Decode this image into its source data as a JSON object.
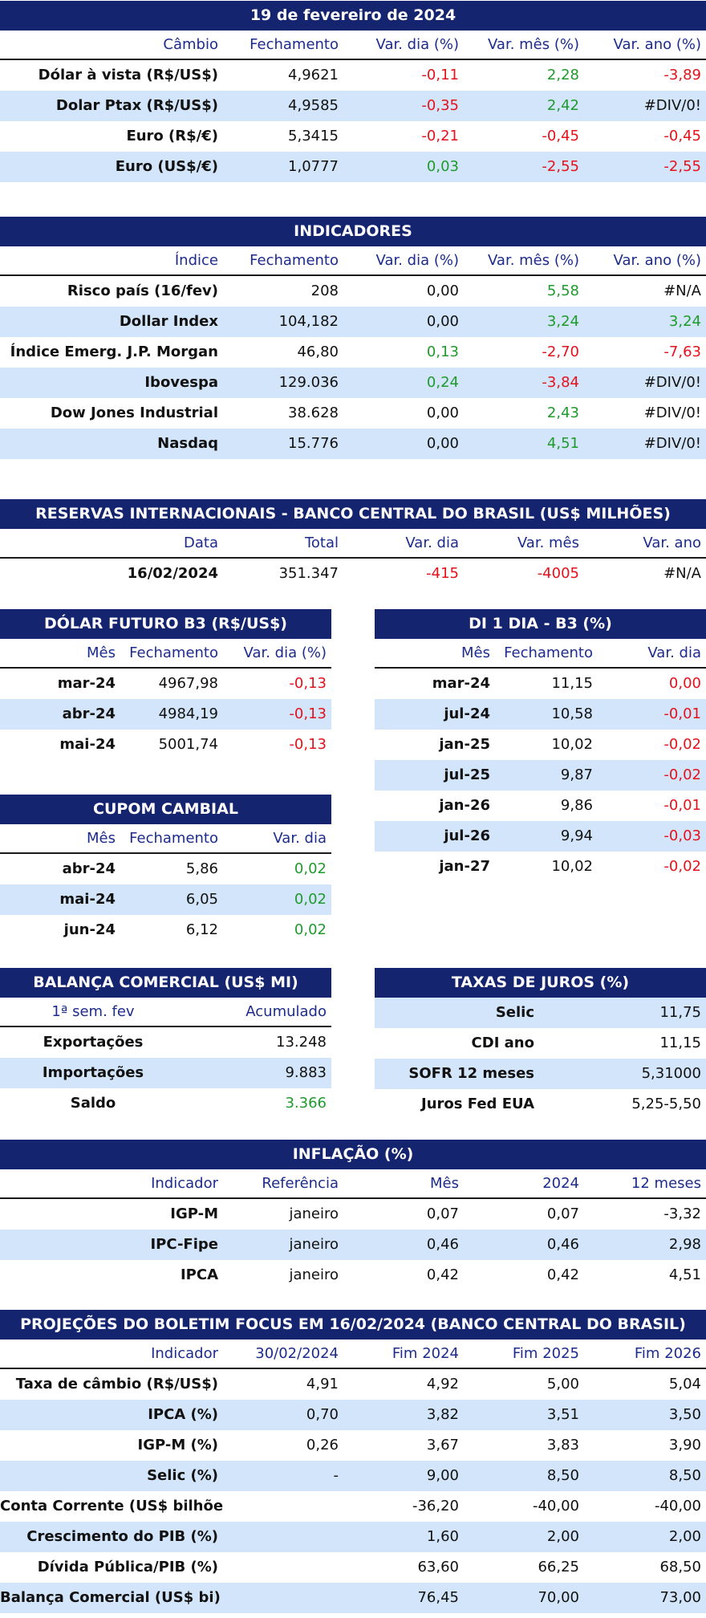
{
  "cambio": {
    "title": "19 de fevereiro de 2024",
    "headers": [
      "Câmbio",
      "Fechamento",
      "Var. dia (%)",
      "Var. mês (%)",
      "Var. ano (%)"
    ],
    "rows": [
      [
        "Dólar à vista (R$/US$)",
        "4,9621",
        "-0,11",
        "2,28",
        "-3,89"
      ],
      [
        "Dolar Ptax (R$/US$)",
        "4,9585",
        "-0,35",
        "2,42",
        "#DIV/0!"
      ],
      [
        "Euro (R$/€)",
        "5,3415",
        "-0,21",
        "-0,45",
        "-0,45"
      ],
      [
        "Euro (US$/€)",
        "1,0777",
        "0,03",
        "-2,55",
        "-2,55"
      ]
    ]
  },
  "indicadores": {
    "title": "INDICADORES",
    "headers": [
      "Índice",
      "Fechamento",
      "Var. dia (%)",
      "Var. mês (%)",
      "Var. ano (%)"
    ],
    "rows": [
      [
        "Risco país (16/fev)",
        "208",
        "0,00",
        "5,58",
        "#N/A"
      ],
      [
        "Dollar Index",
        "104,182",
        "0,00",
        "3,24",
        "3,24"
      ],
      [
        "Índice Emerg. J.P. Morgan",
        "46,80",
        "0,13",
        "-2,70",
        "-7,63"
      ],
      [
        "Ibovespa",
        "129.036",
        "0,24",
        "-3,84",
        "#DIV/0!"
      ],
      [
        "Dow Jones Industrial",
        "38.628",
        "0,00",
        "2,43",
        "#DIV/0!"
      ],
      [
        "Nasdaq",
        "15.776",
        "0,00",
        "4,51",
        "#DIV/0!"
      ]
    ]
  },
  "reservas": {
    "title": "RESERVAS INTERNACIONAIS - BANCO CENTRAL DO BRASIL (US$ MILHÕES)",
    "headers": [
      "Data",
      "Total",
      "Var. dia",
      "Var. mês",
      "Var. ano"
    ],
    "rows": [
      [
        "16/02/2024",
        "351.347",
        "-415",
        "-4005",
        "#N/A"
      ]
    ]
  },
  "dolar_futuro": {
    "title": "DÓLAR FUTURO B3 (R$/US$)",
    "headers": [
      "Mês",
      "Fechamento",
      "Var. dia (%)"
    ],
    "rows": [
      [
        "mar-24",
        "4967,98",
        "-0,13"
      ],
      [
        "abr-24",
        "4984,19",
        "-0,13"
      ],
      [
        "mai-24",
        "5001,74",
        "-0,13"
      ]
    ]
  },
  "di1": {
    "title": "DI 1 DIA - B3 (%)",
    "headers": [
      "Mês",
      "Fechamento",
      "Var. dia"
    ],
    "rows": [
      [
        "mar-24",
        "11,15",
        "0,00"
      ],
      [
        "jul-24",
        "10,58",
        "-0,01"
      ],
      [
        "jan-25",
        "10,02",
        "-0,02"
      ],
      [
        "jul-25",
        "9,87",
        "-0,02"
      ],
      [
        "jan-26",
        "9,86",
        "-0,01"
      ],
      [
        "jul-26",
        "9,94",
        "-0,03"
      ],
      [
        "jan-27",
        "10,02",
        "-0,02"
      ]
    ]
  },
  "cupom": {
    "title": "CUPOM CAMBIAL",
    "headers": [
      "Mês",
      "Fechamento",
      "Var. dia"
    ],
    "rows": [
      [
        "abr-24",
        "5,86",
        "0,02"
      ],
      [
        "mai-24",
        "6,05",
        "0,02"
      ],
      [
        "jun-24",
        "6,12",
        "0,02"
      ]
    ]
  },
  "balanca": {
    "title": "BALANÇA COMERCIAL (US$ MI)",
    "headers": [
      "1ª sem. fev",
      "Acumulado"
    ],
    "rows": [
      [
        "Exportações",
        "13.248"
      ],
      [
        "Importações",
        "9.883"
      ],
      [
        "Saldo",
        "3.366"
      ]
    ]
  },
  "juros": {
    "title": "TAXAS DE JUROS (%)",
    "rows": [
      [
        "Selic",
        "11,75"
      ],
      [
        "CDI ano",
        "11,15"
      ],
      [
        "SOFR 12 meses",
        "5,31000"
      ],
      [
        "Juros Fed EUA",
        "5,25-5,50"
      ]
    ]
  },
  "inflacao": {
    "title": "INFLAÇÃO (%)",
    "headers": [
      "Indicador",
      "Referência",
      "Mês",
      "2024",
      "12 meses"
    ],
    "rows": [
      [
        "IGP-M",
        "janeiro",
        "0,07",
        "0,07",
        "-3,32"
      ],
      [
        "IPC-Fipe",
        "janeiro",
        "0,46",
        "0,46",
        "2,98"
      ],
      [
        "IPCA",
        "janeiro",
        "0,42",
        "0,42",
        "4,51"
      ]
    ]
  },
  "focus": {
    "title": "PROJEÇÕES DO BOLETIM FOCUS EM 16/02/2024 (BANCO CENTRAL DO BRASIL)",
    "headers": [
      "Indicador",
      "30/02/2024",
      "Fim 2024",
      "Fim 2025",
      "Fim 2026"
    ],
    "rows": [
      [
        "Taxa de câmbio (R$/US$)",
        "4,91",
        "4,92",
        "5,00",
        "5,04"
      ],
      [
        "IPCA (%)",
        "0,70",
        "3,82",
        "3,51",
        "3,50"
      ],
      [
        "IGP-M (%)",
        "0,26",
        "3,67",
        "3,83",
        "3,90"
      ],
      [
        "Selic (%)",
        "-",
        "9,00",
        "8,50",
        "8,50"
      ],
      [
        "Conta Corrente (US$ bilhões)",
        "",
        "-36,20",
        "-40,00",
        "-40,00"
      ],
      [
        "Crescimento do PIB (%)",
        "",
        "1,60",
        "2,00",
        "2,00"
      ],
      [
        "Dívida Pública/PIB (%)",
        "",
        "63,60",
        "66,25",
        "68,50"
      ],
      [
        "Balança Comercial (US$ bi)",
        "",
        "76,45",
        "70,00",
        "73,00"
      ]
    ]
  },
  "colors": {
    "header_bg": "#15246e",
    "stripe": "#d3e5fa",
    "negative": "#e4121c",
    "positive": "#1f9a2c",
    "col_header_text": "#1d2b8c"
  }
}
